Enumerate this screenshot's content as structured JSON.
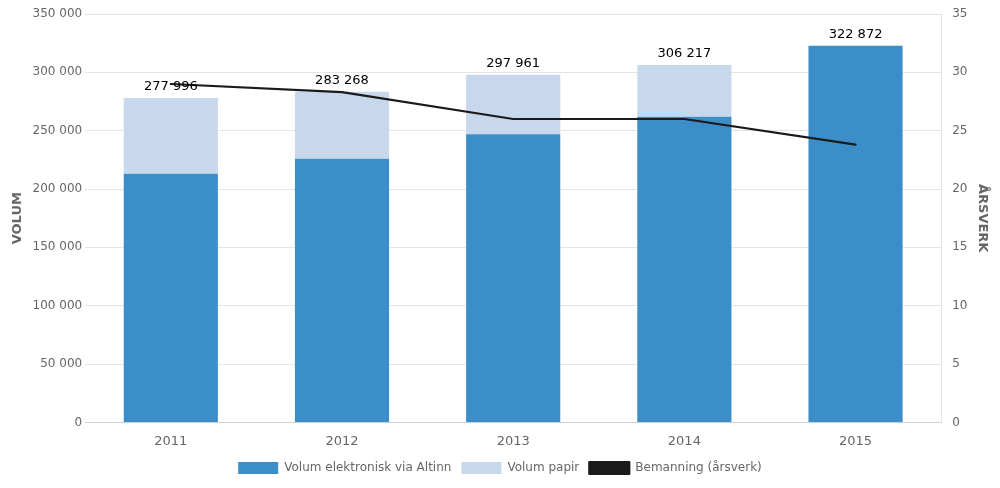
{
  "chart_data": {
    "type": "bar",
    "categories": [
      "2011",
      "2012",
      "2013",
      "2014",
      "2015"
    ],
    "series": [
      {
        "name": "Volum elektronisk via Altinn",
        "color": "#3b8ec8",
        "values": [
          213000,
          226000,
          247000,
          262000,
          322872
        ]
      },
      {
        "name": "Volum papir",
        "color": "#c8d8ec",
        "values": [
          64996,
          57268,
          50961,
          44217,
          0
        ]
      },
      {
        "name": "Bemanning (årsverk)",
        "type": "line",
        "color": "#1a1a1a",
        "axis": "y2",
        "values": [
          29.0,
          28.3,
          26.0,
          26.0,
          23.8
        ]
      }
    ],
    "stacked": true,
    "ylabel": "VOLUM",
    "y2label": "ÅRSVERK",
    "ylim": [
      0,
      350000
    ],
    "yticks": [
      0,
      {
        "value": 50000,
        "label": "50 000"
      },
      {
        "value": 100000,
        "label": "100 000"
      },
      {
        "value": 150000,
        "label": "150 000"
      },
      {
        "value": 200000,
        "label": "200 000"
      },
      {
        "value": 250000,
        "label": "250 000"
      },
      {
        "value": 300000,
        "label": "300 000"
      },
      {
        "value": 350000,
        "label": "350 000"
      }
    ],
    "y2lim": [
      0,
      35
    ],
    "y2ticks": [
      0,
      5,
      10,
      15,
      20,
      25,
      30,
      35
    ],
    "grid": true,
    "legend": "bottom",
    "annotations": [
      {
        "x": "2011",
        "y": 277996,
        "text": "277 996"
      },
      {
        "x": "2012",
        "y": 283268,
        "text": "283 268"
      },
      {
        "x": "2013",
        "y": 297961,
        "text": "297 961"
      },
      {
        "x": "2014",
        "y": 306217,
        "text": "306 217"
      },
      {
        "x": "2015",
        "y": 322872,
        "text": "322 872"
      }
    ]
  }
}
